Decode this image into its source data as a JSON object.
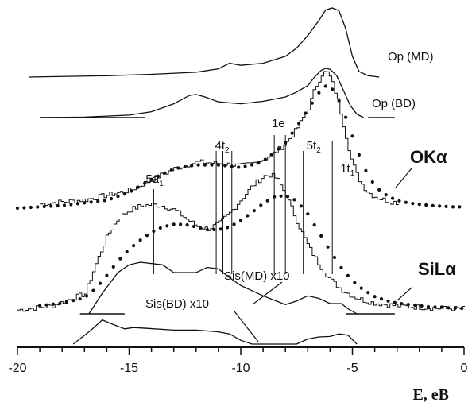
{
  "chart_data": {
    "type": "line",
    "xlabel": "E, eB",
    "xlim": [
      -20,
      0
    ],
    "xticks": [
      {
        "value": -20,
        "label": "-20"
      },
      {
        "value": -15,
        "label": "-15"
      },
      {
        "value": -10,
        "label": "-10"
      },
      {
        "value": -5,
        "label": "-5"
      },
      {
        "value": 0,
        "label": "0"
      }
    ],
    "series_labels": {
      "op_md": "Op (MD)",
      "op_bd": "Op (BD)",
      "ok_alpha": "OKα",
      "sil_alpha": "SiLα",
      "sis_md": "Sis(MD) x10",
      "sis_bd": "Sis(BD) x10"
    },
    "peak_labels": [
      {
        "text": "5a",
        "sub": "1",
        "e": -13.9
      },
      {
        "text": "4t",
        "sub": "2",
        "e": -10.8
      },
      {
        "text": "1e",
        "sub": "",
        "e": -8.4
      },
      {
        "text": "5t",
        "sub": "2",
        "e": -7.2
      },
      {
        "text": "1t",
        "sub": "1",
        "e": -5.9
      }
    ],
    "peak_lines": [
      -13.9,
      -11.1,
      -10.8,
      -10.4,
      -8.5,
      -8.0,
      -7.2,
      -5.9
    ],
    "curves": {
      "op_md": {
        "x": [
          -19.5,
          -16,
          -14,
          -12,
          -11,
          -10.5,
          -10,
          -9,
          -8,
          -7.5,
          -7,
          -6.5,
          -6.2,
          -5.9,
          -5.6,
          -5.3,
          -5.0,
          -4.7,
          -4.3,
          -3.8
        ],
        "y": [
          0,
          0.02,
          0.04,
          0.07,
          0.12,
          0.2,
          0.17,
          0.2,
          0.3,
          0.42,
          0.6,
          0.82,
          0.97,
          1.0,
          0.96,
          0.7,
          0.3,
          0.08,
          0.02,
          0
        ]
      },
      "op_bd": {
        "x": [
          -19,
          -17,
          -15,
          -14,
          -13,
          -12.3,
          -12,
          -11.6,
          -11,
          -10,
          -9,
          -8,
          -7.5,
          -7,
          -6.7,
          -6.4,
          -6.2,
          -6,
          -5.7,
          -5.4,
          -5.1,
          -4.8,
          -4.5
        ],
        "y": [
          0,
          0.01,
          0.05,
          0.12,
          0.28,
          0.45,
          0.47,
          0.42,
          0.32,
          0.28,
          0.33,
          0.42,
          0.52,
          0.65,
          0.82,
          0.96,
          1.0,
          0.98,
          0.85,
          0.55,
          0.25,
          0.07,
          0
        ]
      },
      "ok_theory": {
        "x": [
          -19,
          -17,
          -15,
          -14,
          -13,
          -12,
          -11,
          -10,
          -9.5,
          -9,
          -8.5,
          -8,
          -7.5,
          -7,
          -6.7,
          -6.4,
          -6.2,
          -6,
          -5.7,
          -5.4,
          -5.1,
          -4.8,
          -4.5,
          -4.2,
          -3.8,
          -3.4,
          -3.0
        ],
        "y": [
          0.02,
          0.05,
          0.12,
          0.2,
          0.28,
          0.33,
          0.32,
          0.3,
          0.32,
          0.35,
          0.4,
          0.47,
          0.58,
          0.73,
          0.88,
          0.98,
          1.0,
          0.95,
          0.8,
          0.58,
          0.36,
          0.22,
          0.14,
          0.09,
          0.06,
          0.04,
          0.03
        ]
      },
      "ok_exp": {
        "x": [
          -20,
          -18,
          -16,
          -15,
          -14,
          -13,
          -12,
          -11,
          -10,
          -9.5,
          -9,
          -8.5,
          -8,
          -7.5,
          -7,
          -6.5,
          -6.2,
          -6,
          -5.7,
          -5.4,
          -5.1,
          -4.8,
          -4.5,
          -4.2,
          -3.8,
          -3.4,
          -3.0,
          -2.5,
          -2.0,
          -1.5,
          -1.0,
          -0.5,
          0
        ],
        "y": [
          0.0,
          0.02,
          0.06,
          0.12,
          0.22,
          0.3,
          0.33,
          0.33,
          0.31,
          0.33,
          0.36,
          0.42,
          0.5,
          0.62,
          0.75,
          0.88,
          0.93,
          0.93,
          0.86,
          0.74,
          0.6,
          0.45,
          0.32,
          0.22,
          0.14,
          0.09,
          0.06,
          0.04,
          0.03,
          0.02,
          0.015,
          0.01,
          0.01
        ]
      },
      "sil_theory": {
        "x": [
          -20,
          -18.5,
          -17,
          -16.5,
          -16,
          -15.5,
          -15,
          -14.5,
          -14,
          -13.5,
          -13,
          -12.5,
          -12,
          -11.5,
          -11,
          -10.5,
          -10,
          -9.5,
          -9,
          -8.7,
          -8.4,
          -8,
          -7.5,
          -7,
          -6.5,
          -6,
          -5.5,
          -5,
          -4.5,
          -4,
          -3.5,
          -3,
          -2,
          -1,
          0
        ],
        "y": [
          0.0,
          0.03,
          0.12,
          0.35,
          0.55,
          0.68,
          0.74,
          0.77,
          0.78,
          0.77,
          0.74,
          0.68,
          0.62,
          0.6,
          0.64,
          0.72,
          0.82,
          0.92,
          0.99,
          1.0,
          0.97,
          0.85,
          0.65,
          0.47,
          0.33,
          0.22,
          0.15,
          0.1,
          0.07,
          0.05,
          0.04,
          0.03,
          0.02,
          0.01,
          0.01
        ]
      },
      "sil_exp": {
        "x": [
          -19,
          -18,
          -17,
          -16.5,
          -16,
          -15.5,
          -15,
          -14.5,
          -14,
          -13.5,
          -13,
          -12.5,
          -12,
          -11.5,
          -11,
          -10.5,
          -10,
          -9.5,
          -9,
          -8.5,
          -8,
          -7.5,
          -7,
          -6.5,
          -6,
          -5.5,
          -5,
          -4.5,
          -4,
          -3.5,
          -3,
          -2.5,
          -2,
          -1.5,
          -1,
          -0.5,
          0
        ],
        "y": [
          0.02,
          0.04,
          0.08,
          0.15,
          0.25,
          0.36,
          0.45,
          0.52,
          0.58,
          0.62,
          0.64,
          0.64,
          0.62,
          0.6,
          0.6,
          0.62,
          0.67,
          0.73,
          0.8,
          0.85,
          0.86,
          0.82,
          0.72,
          0.58,
          0.44,
          0.31,
          0.21,
          0.14,
          0.09,
          0.06,
          0.04,
          0.03,
          0.02,
          0.01,
          0.01,
          0.0,
          0.0
        ]
      },
      "sis_md": {
        "x": [
          -16.8,
          -16.2,
          -15.5,
          -15,
          -14.5,
          -13.5,
          -13,
          -12,
          -11.5,
          -11,
          -10.5,
          -10,
          -9,
          -8,
          -7.5,
          -7,
          -6.5,
          -6,
          -5.5,
          -5.2,
          -4.8
        ],
        "y": [
          0,
          0.4,
          0.8,
          0.95,
          1.0,
          0.95,
          0.8,
          0.8,
          0.9,
          0.87,
          0.7,
          0.55,
          0.35,
          0.18,
          0.25,
          0.35,
          0.3,
          0.2,
          0.2,
          0.1,
          0
        ]
      },
      "sis_bd": {
        "x": [
          -17.5,
          -16.7,
          -16.2,
          -15.8,
          -15.2,
          -14.8,
          -14.2,
          -13,
          -12,
          -11,
          -10.5,
          -10,
          -9.5,
          -8.5,
          -7.5,
          -7,
          -6.5,
          -6,
          -5.6,
          -5.2,
          -4.8
        ],
        "y": [
          0,
          0.55,
          0.95,
          0.8,
          0.6,
          0.65,
          0.62,
          0.55,
          0.55,
          0.48,
          0.4,
          0.15,
          0,
          0,
          0,
          0.2,
          0.28,
          0.3,
          0.4,
          0.35,
          0
        ]
      }
    }
  }
}
